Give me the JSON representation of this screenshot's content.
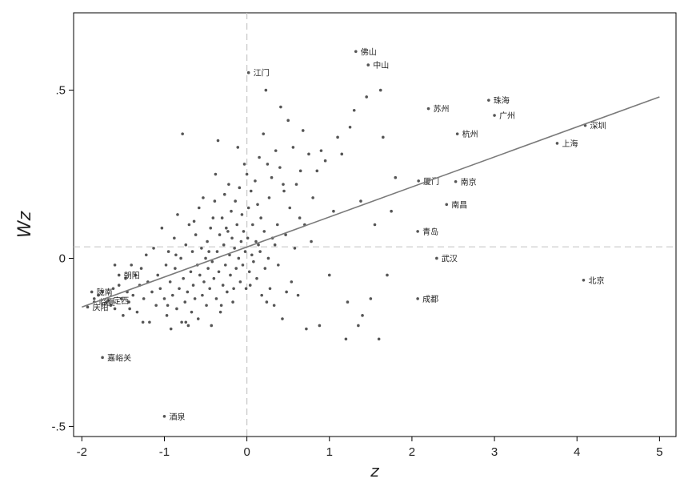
{
  "chart_data": {
    "type": "scatter",
    "xlabel": "z",
    "ylabel": "Wz",
    "xlim": [
      -2.1,
      5.2
    ],
    "ylim": [
      -0.53,
      0.73
    ],
    "x_ticks": [
      -2,
      -1,
      0,
      1,
      2,
      3,
      4,
      5
    ],
    "x_tick_labels": [
      "-2",
      "-1",
      "0",
      "1",
      "2",
      "3",
      "4",
      "5"
    ],
    "y_ticks": [
      -0.5,
      0,
      0.5
    ],
    "y_tick_labels": [
      "-.5",
      "0",
      ".5"
    ],
    "mean_x": 0,
    "mean_y": 0.034,
    "fit_line": {
      "x": [
        -2.0,
        5.0
      ],
      "y": [
        -0.145,
        0.48
      ]
    },
    "grid": false,
    "colors": {
      "points": "#555555",
      "line": "#7a7a7a",
      "mean_lines": "#c8c8c8",
      "frame": "#000000"
    },
    "labeled_points": [
      {
        "label": "佛山",
        "x": 1.32,
        "y": 0.615
      },
      {
        "label": "中山",
        "x": 1.47,
        "y": 0.575
      },
      {
        "label": "江门",
        "x": 0.02,
        "y": 0.552
      },
      {
        "label": "珠海",
        "x": 2.93,
        "y": 0.47
      },
      {
        "label": "苏州",
        "x": 2.2,
        "y": 0.445
      },
      {
        "label": "广州",
        "x": 3.0,
        "y": 0.425
      },
      {
        "label": "深圳",
        "x": 4.1,
        "y": 0.395
      },
      {
        "label": "杭州",
        "x": 2.55,
        "y": 0.37
      },
      {
        "label": "上海",
        "x": 3.76,
        "y": 0.342
      },
      {
        "label": "厦门",
        "x": 2.08,
        "y": 0.23
      },
      {
        "label": "南京",
        "x": 2.53,
        "y": 0.228
      },
      {
        "label": "南昌",
        "x": 2.42,
        "y": 0.16
      },
      {
        "label": "青岛",
        "x": 2.07,
        "y": 0.08
      },
      {
        "label": "武汉",
        "x": 2.3,
        "y": 0.0
      },
      {
        "label": "北京",
        "x": 4.08,
        "y": -0.065
      },
      {
        "label": "成都",
        "x": 2.07,
        "y": -0.12
      },
      {
        "label": "朝阳",
        "x": -1.55,
        "y": -0.05
      },
      {
        "label": "陇南",
        "x": -1.88,
        "y": -0.1
      },
      {
        "label": "定西",
        "x": -1.68,
        "y": -0.125
      },
      {
        "label": "临夏",
        "x": -1.85,
        "y": -0.13
      },
      {
        "label": "庆阳",
        "x": -1.93,
        "y": -0.145
      },
      {
        "label": "嘉峪关",
        "x": -1.75,
        "y": -0.295
      },
      {
        "label": "酒泉",
        "x": -1.0,
        "y": -0.47
      }
    ],
    "points": [
      [
        -1.85,
        -0.12
      ],
      [
        -1.8,
        -0.11
      ],
      [
        -1.75,
        -0.1
      ],
      [
        -1.7,
        -0.13
      ],
      [
        -1.65,
        -0.14
      ],
      [
        -1.62,
        -0.09
      ],
      [
        -1.6,
        -0.15
      ],
      [
        -1.55,
        -0.08
      ],
      [
        -1.52,
        -0.12
      ],
      [
        -1.5,
        -0.17
      ],
      [
        -1.47,
        -0.06
      ],
      [
        -1.45,
        -0.1
      ],
      [
        -1.43,
        -0.13
      ],
      [
        -1.4,
        -0.02
      ],
      [
        -1.38,
        -0.11
      ],
      [
        -1.35,
        -0.05
      ],
      [
        -1.33,
        -0.16
      ],
      [
        -1.3,
        -0.08
      ],
      [
        -1.28,
        -0.03
      ],
      [
        -1.25,
        -0.12
      ],
      [
        -1.22,
        0.01
      ],
      [
        -1.2,
        -0.07
      ],
      [
        -1.18,
        -0.19
      ],
      [
        -1.15,
        -0.1
      ],
      [
        -1.13,
        0.03
      ],
      [
        -1.1,
        -0.14
      ],
      [
        -1.08,
        -0.05
      ],
      [
        -1.05,
        -0.09
      ],
      [
        -1.03,
        0.09
      ],
      [
        -1.0,
        -0.12
      ],
      [
        -0.98,
        -0.02
      ],
      [
        -0.97,
        -0.17
      ],
      [
        -0.95,
        0.02
      ],
      [
        -0.93,
        -0.07
      ],
      [
        -0.92,
        -0.21
      ],
      [
        -0.9,
        -0.11
      ],
      [
        -0.88,
        0.06
      ],
      [
        -0.87,
        -0.03
      ],
      [
        -0.85,
        -0.15
      ],
      [
        -0.84,
        0.13
      ],
      [
        -0.82,
        -0.09
      ],
      [
        -0.8,
        0.0
      ],
      [
        -0.79,
        -0.19
      ],
      [
        -0.78,
        0.37
      ],
      [
        -0.77,
        -0.06
      ],
      [
        -0.75,
        -0.13
      ],
      [
        -0.74,
        0.04
      ],
      [
        -0.72,
        -0.1
      ],
      [
        -0.71,
        -0.2
      ],
      [
        -0.7,
        0.1
      ],
      [
        -0.68,
        -0.04
      ],
      [
        -0.67,
        -0.16
      ],
      [
        -0.66,
        0.02
      ],
      [
        -0.65,
        -0.08
      ],
      [
        -0.63,
        -0.12
      ],
      [
        -0.62,
        0.07
      ],
      [
        -0.6,
        -0.02
      ],
      [
        -0.59,
        -0.18
      ],
      [
        -0.58,
        0.15
      ],
      [
        -0.57,
        -0.05
      ],
      [
        -0.55,
        0.03
      ],
      [
        -0.54,
        -0.11
      ],
      [
        -0.53,
        0.18
      ],
      [
        -0.52,
        -0.07
      ],
      [
        -0.5,
        0.0
      ],
      [
        -0.49,
        -0.14
      ],
      [
        -0.48,
        0.05
      ],
      [
        -0.47,
        -0.03
      ],
      [
        -0.45,
        -0.09
      ],
      [
        -0.44,
        0.09
      ],
      [
        -0.43,
        -0.2
      ],
      [
        -0.42,
        -0.01
      ],
      [
        -0.41,
        0.12
      ],
      [
        -0.4,
        -0.06
      ],
      [
        -0.38,
        0.25
      ],
      [
        -0.37,
        -0.12
      ],
      [
        -0.36,
        0.02
      ],
      [
        -0.35,
        0.35
      ],
      [
        -0.34,
        -0.04
      ],
      [
        -0.33,
        0.07
      ],
      [
        -0.32,
        -0.16
      ],
      [
        -0.3,
        0.12
      ],
      [
        -0.29,
        -0.08
      ],
      [
        -0.28,
        0.04
      ],
      [
        -0.27,
        0.19
      ],
      [
        -0.26,
        -0.02
      ],
      [
        -0.25,
        0.09
      ],
      [
        -0.24,
        -0.1
      ],
      [
        -0.22,
        0.22
      ],
      [
        -0.21,
        0.01
      ],
      [
        -0.2,
        -0.05
      ],
      [
        -0.19,
        0.14
      ],
      [
        -0.18,
        0.06
      ],
      [
        -0.17,
        -0.13
      ],
      [
        -0.15,
        0.03
      ],
      [
        -0.14,
        0.17
      ],
      [
        -0.13,
        -0.03
      ],
      [
        -0.12,
        0.1
      ],
      [
        -0.1,
        0.0
      ],
      [
        -0.09,
        0.21
      ],
      [
        -0.08,
        -0.07
      ],
      [
        -0.07,
        0.05
      ],
      [
        -0.06,
        0.13
      ],
      [
        -0.05,
        -0.02
      ],
      [
        -0.04,
        0.08
      ],
      [
        -0.03,
        0.28
      ],
      [
        -0.02,
        0.02
      ],
      [
        -0.01,
        -0.09
      ],
      [
        0.0,
        0.25
      ],
      [
        0.01,
        0.06
      ],
      [
        0.02,
        0.15
      ],
      [
        0.03,
        -0.04
      ],
      [
        0.05,
        0.2
      ],
      [
        0.06,
        0.01
      ],
      [
        0.07,
        0.1
      ],
      [
        0.08,
        -0.01
      ],
      [
        0.1,
        0.23
      ],
      [
        0.11,
        0.05
      ],
      [
        0.12,
        -0.06
      ],
      [
        0.13,
        0.16
      ],
      [
        0.15,
        0.3
      ],
      [
        0.16,
        0.02
      ],
      [
        0.17,
        0.12
      ],
      [
        0.18,
        -0.11
      ],
      [
        0.2,
        0.37
      ],
      [
        0.21,
        0.08
      ],
      [
        0.22,
        -0.03
      ],
      [
        0.23,
        0.5
      ],
      [
        0.25,
        0.28
      ],
      [
        0.26,
        0.0
      ],
      [
        0.27,
        0.18
      ],
      [
        0.28,
        -0.09
      ],
      [
        0.3,
        0.24
      ],
      [
        0.31,
        0.06
      ],
      [
        0.33,
        -0.14
      ],
      [
        0.35,
        0.32
      ],
      [
        0.37,
        0.1
      ],
      [
        0.38,
        -0.02
      ],
      [
        0.4,
        0.27
      ],
      [
        0.41,
        0.45
      ],
      [
        0.43,
        -0.18
      ],
      [
        0.45,
        0.2
      ],
      [
        0.47,
        0.07
      ],
      [
        0.5,
        0.41
      ],
      [
        0.52,
        0.15
      ],
      [
        0.54,
        -0.07
      ],
      [
        0.56,
        0.33
      ],
      [
        0.58,
        0.03
      ],
      [
        0.6,
        0.22
      ],
      [
        0.62,
        -0.11
      ],
      [
        0.65,
        0.26
      ],
      [
        0.68,
        0.38
      ],
      [
        0.7,
        0.1
      ],
      [
        0.72,
        -0.21
      ],
      [
        0.75,
        0.31
      ],
      [
        0.8,
        0.18
      ],
      [
        0.85,
        0.26
      ],
      [
        0.9,
        0.32
      ],
      [
        0.95,
        0.29
      ],
      [
        1.0,
        -0.05
      ],
      [
        1.05,
        0.14
      ],
      [
        1.1,
        0.36
      ],
      [
        1.15,
        0.31
      ],
      [
        1.2,
        -0.24
      ],
      [
        1.25,
        0.39
      ],
      [
        1.3,
        0.44
      ],
      [
        1.35,
        -0.2
      ],
      [
        1.4,
        -0.17
      ],
      [
        1.45,
        0.48
      ],
      [
        1.5,
        -0.12
      ],
      [
        1.55,
        0.1
      ],
      [
        1.6,
        -0.24
      ],
      [
        1.65,
        0.36
      ],
      [
        1.7,
        -0.05
      ],
      [
        1.75,
        0.14
      ],
      [
        1.8,
        0.24
      ],
      [
        -1.6,
        -0.02
      ],
      [
        -1.42,
        -0.15
      ],
      [
        -1.26,
        -0.19
      ],
      [
        -0.96,
        -0.14
      ],
      [
        -0.86,
        0.01
      ],
      [
        -0.74,
        -0.19
      ],
      [
        -0.64,
        0.11
      ],
      [
        -0.46,
        0.02
      ],
      [
        -0.39,
        0.17
      ],
      [
        -0.31,
        -0.14
      ],
      [
        -0.23,
        0.08
      ],
      [
        -0.16,
        -0.09
      ],
      [
        -0.11,
        0.33
      ],
      [
        0.04,
        -0.08
      ],
      [
        0.14,
        0.04
      ],
      [
        0.24,
        -0.13
      ],
      [
        0.34,
        0.04
      ],
      [
        0.44,
        0.22
      ],
      [
        0.48,
        -0.1
      ],
      [
        0.64,
        0.12
      ],
      [
        0.78,
        0.05
      ],
      [
        0.88,
        -0.2
      ],
      [
        1.22,
        -0.13
      ],
      [
        1.38,
        0.17
      ],
      [
        1.62,
        0.5
      ]
    ]
  }
}
